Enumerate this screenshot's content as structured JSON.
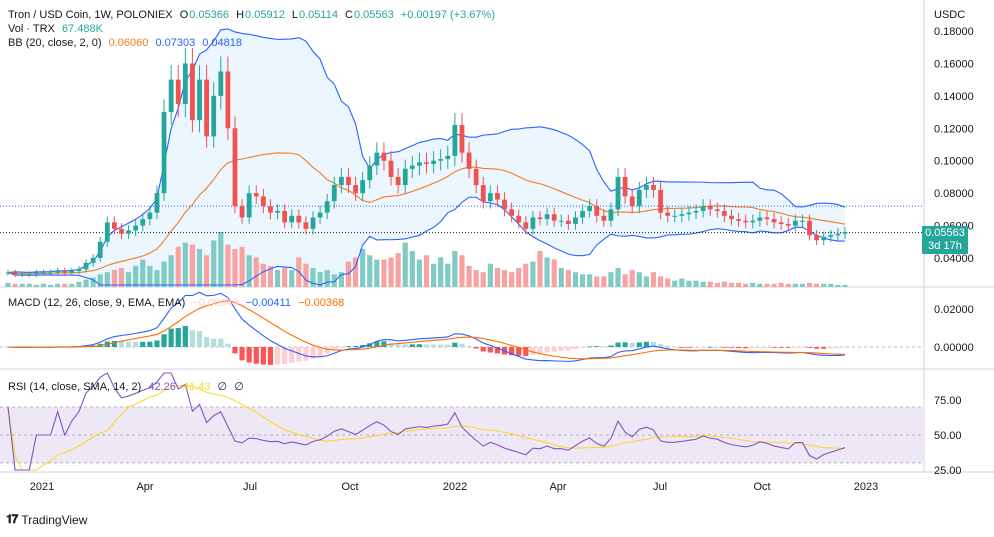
{
  "header": {
    "symbol": "Tron / USD Coin, 1W, POLONIEX",
    "o_label": "O",
    "o_val": "0.05366",
    "h_label": "H",
    "h_val": "0.05912",
    "l_label": "L",
    "l_val": "0.05114",
    "c_label": "C",
    "c_val": "0.05563",
    "change": "+0.00197 (+3.67%)",
    "vol_label": "Vol · TRX",
    "vol_val": "67.488K",
    "bb_label": "BB (20, close, 2, 0)",
    "bb_basis": "0.06060",
    "bb_upper": "0.07303",
    "bb_lower": "0.04818"
  },
  "currency": "USDC",
  "price_tag": {
    "value": "0.05563",
    "countdown": "3d 17h"
  },
  "macd": {
    "label": "MACD (12, 26, close, 9, EMA, EMA)",
    "hist": "−0.00043",
    "macd": "−0.00411",
    "signal": "−0.00368"
  },
  "rsi": {
    "label": "RSI (14, close, SMA, 14, 2)",
    "rsi": "42.26",
    "sma": "41.43",
    "extra1": "∅",
    "extra2": "∅"
  },
  "watermark": "TradingView",
  "colors": {
    "up": "#26a69a",
    "down": "#ef5350",
    "bb_basis": "#f57c20",
    "bb_band": "#2962ff",
    "bb_fill": "#e3f2fd",
    "macd_line": "#2962ff",
    "signal_line": "#ff6d00",
    "rsi_line": "#7e57c2",
    "rsi_sma": "#fdd835",
    "rsi_band": "#ede7f6"
  },
  "chart_data": {
    "type": "candlestick",
    "y_ticks": [
      "0.18000",
      "0.16000",
      "0.14000",
      "0.12000",
      "0.10000",
      "0.08000",
      "0.06000",
      "0.04000"
    ],
    "ylim": [
      0.03,
      0.182
    ],
    "x_ticks": [
      "2021",
      "Apr",
      "Jul",
      "Oct",
      "2022",
      "Apr",
      "Jul",
      "Oct",
      "2023"
    ],
    "horizontal_marker": 0.072,
    "last_price": 0.05563,
    "close_series": [
      0.031,
      0.03,
      0.03,
      0.03,
      0.031,
      0.031,
      0.031,
      0.032,
      0.031,
      0.032,
      0.033,
      0.037,
      0.04,
      0.05,
      0.062,
      0.058,
      0.055,
      0.057,
      0.06,
      0.064,
      0.068,
      0.08,
      0.13,
      0.15,
      0.135,
      0.16,
      0.125,
      0.15,
      0.115,
      0.14,
      0.155,
      0.12,
      0.072,
      0.065,
      0.08,
      0.078,
      0.072,
      0.068,
      0.069,
      0.062,
      0.066,
      0.062,
      0.058,
      0.065,
      0.068,
      0.075,
      0.085,
      0.09,
      0.085,
      0.08,
      0.088,
      0.097,
      0.105,
      0.1,
      0.09,
      0.085,
      0.095,
      0.097,
      0.099,
      0.098,
      0.1,
      0.101,
      0.103,
      0.122,
      0.105,
      0.095,
      0.085,
      0.075,
      0.08,
      0.076,
      0.07,
      0.066,
      0.062,
      0.058,
      0.065,
      0.064,
      0.067,
      0.063,
      0.063,
      0.061,
      0.065,
      0.069,
      0.072,
      0.066,
      0.063,
      0.07,
      0.09,
      0.078,
      0.072,
      0.082,
      0.085,
      0.082,
      0.068,
      0.066,
      0.066,
      0.067,
      0.068,
      0.069,
      0.072,
      0.07,
      0.069,
      0.066,
      0.064,
      0.063,
      0.062,
      0.063,
      0.065,
      0.064,
      0.062,
      0.061,
      0.06,
      0.063,
      0.063,
      0.054,
      0.051,
      0.053,
      0.054,
      0.055,
      0.056
    ],
    "volume_bars": [
      4,
      3,
      3,
      3,
      2,
      3,
      2,
      3,
      3,
      3,
      5,
      7,
      9,
      12,
      14,
      16,
      18,
      14,
      20,
      26,
      20,
      16,
      24,
      30,
      38,
      42,
      40,
      36,
      30,
      44,
      52,
      40,
      36,
      38,
      30,
      28,
      22,
      20,
      16,
      18,
      16,
      28,
      22,
      18,
      14,
      16,
      12,
      14,
      24,
      28,
      36,
      30,
      26,
      26,
      28,
      32,
      42,
      34,
      26,
      30,
      22,
      28,
      22,
      34,
      30,
      20,
      16,
      14,
      22,
      18,
      16,
      14,
      18,
      22,
      24,
      34,
      28,
      26,
      18,
      16,
      14,
      12,
      12,
      10,
      10,
      14,
      18,
      12,
      16,
      14,
      10,
      14,
      10,
      8,
      6,
      8,
      6,
      6,
      5,
      5,
      4,
      5,
      4,
      4,
      3,
      4,
      3,
      3,
      3,
      4,
      3,
      3,
      3,
      4,
      3,
      3,
      3,
      2,
      2
    ],
    "macd_series_label": "MACD",
    "rsi_levels": [
      "75.00",
      "50.00",
      "25.00"
    ]
  }
}
